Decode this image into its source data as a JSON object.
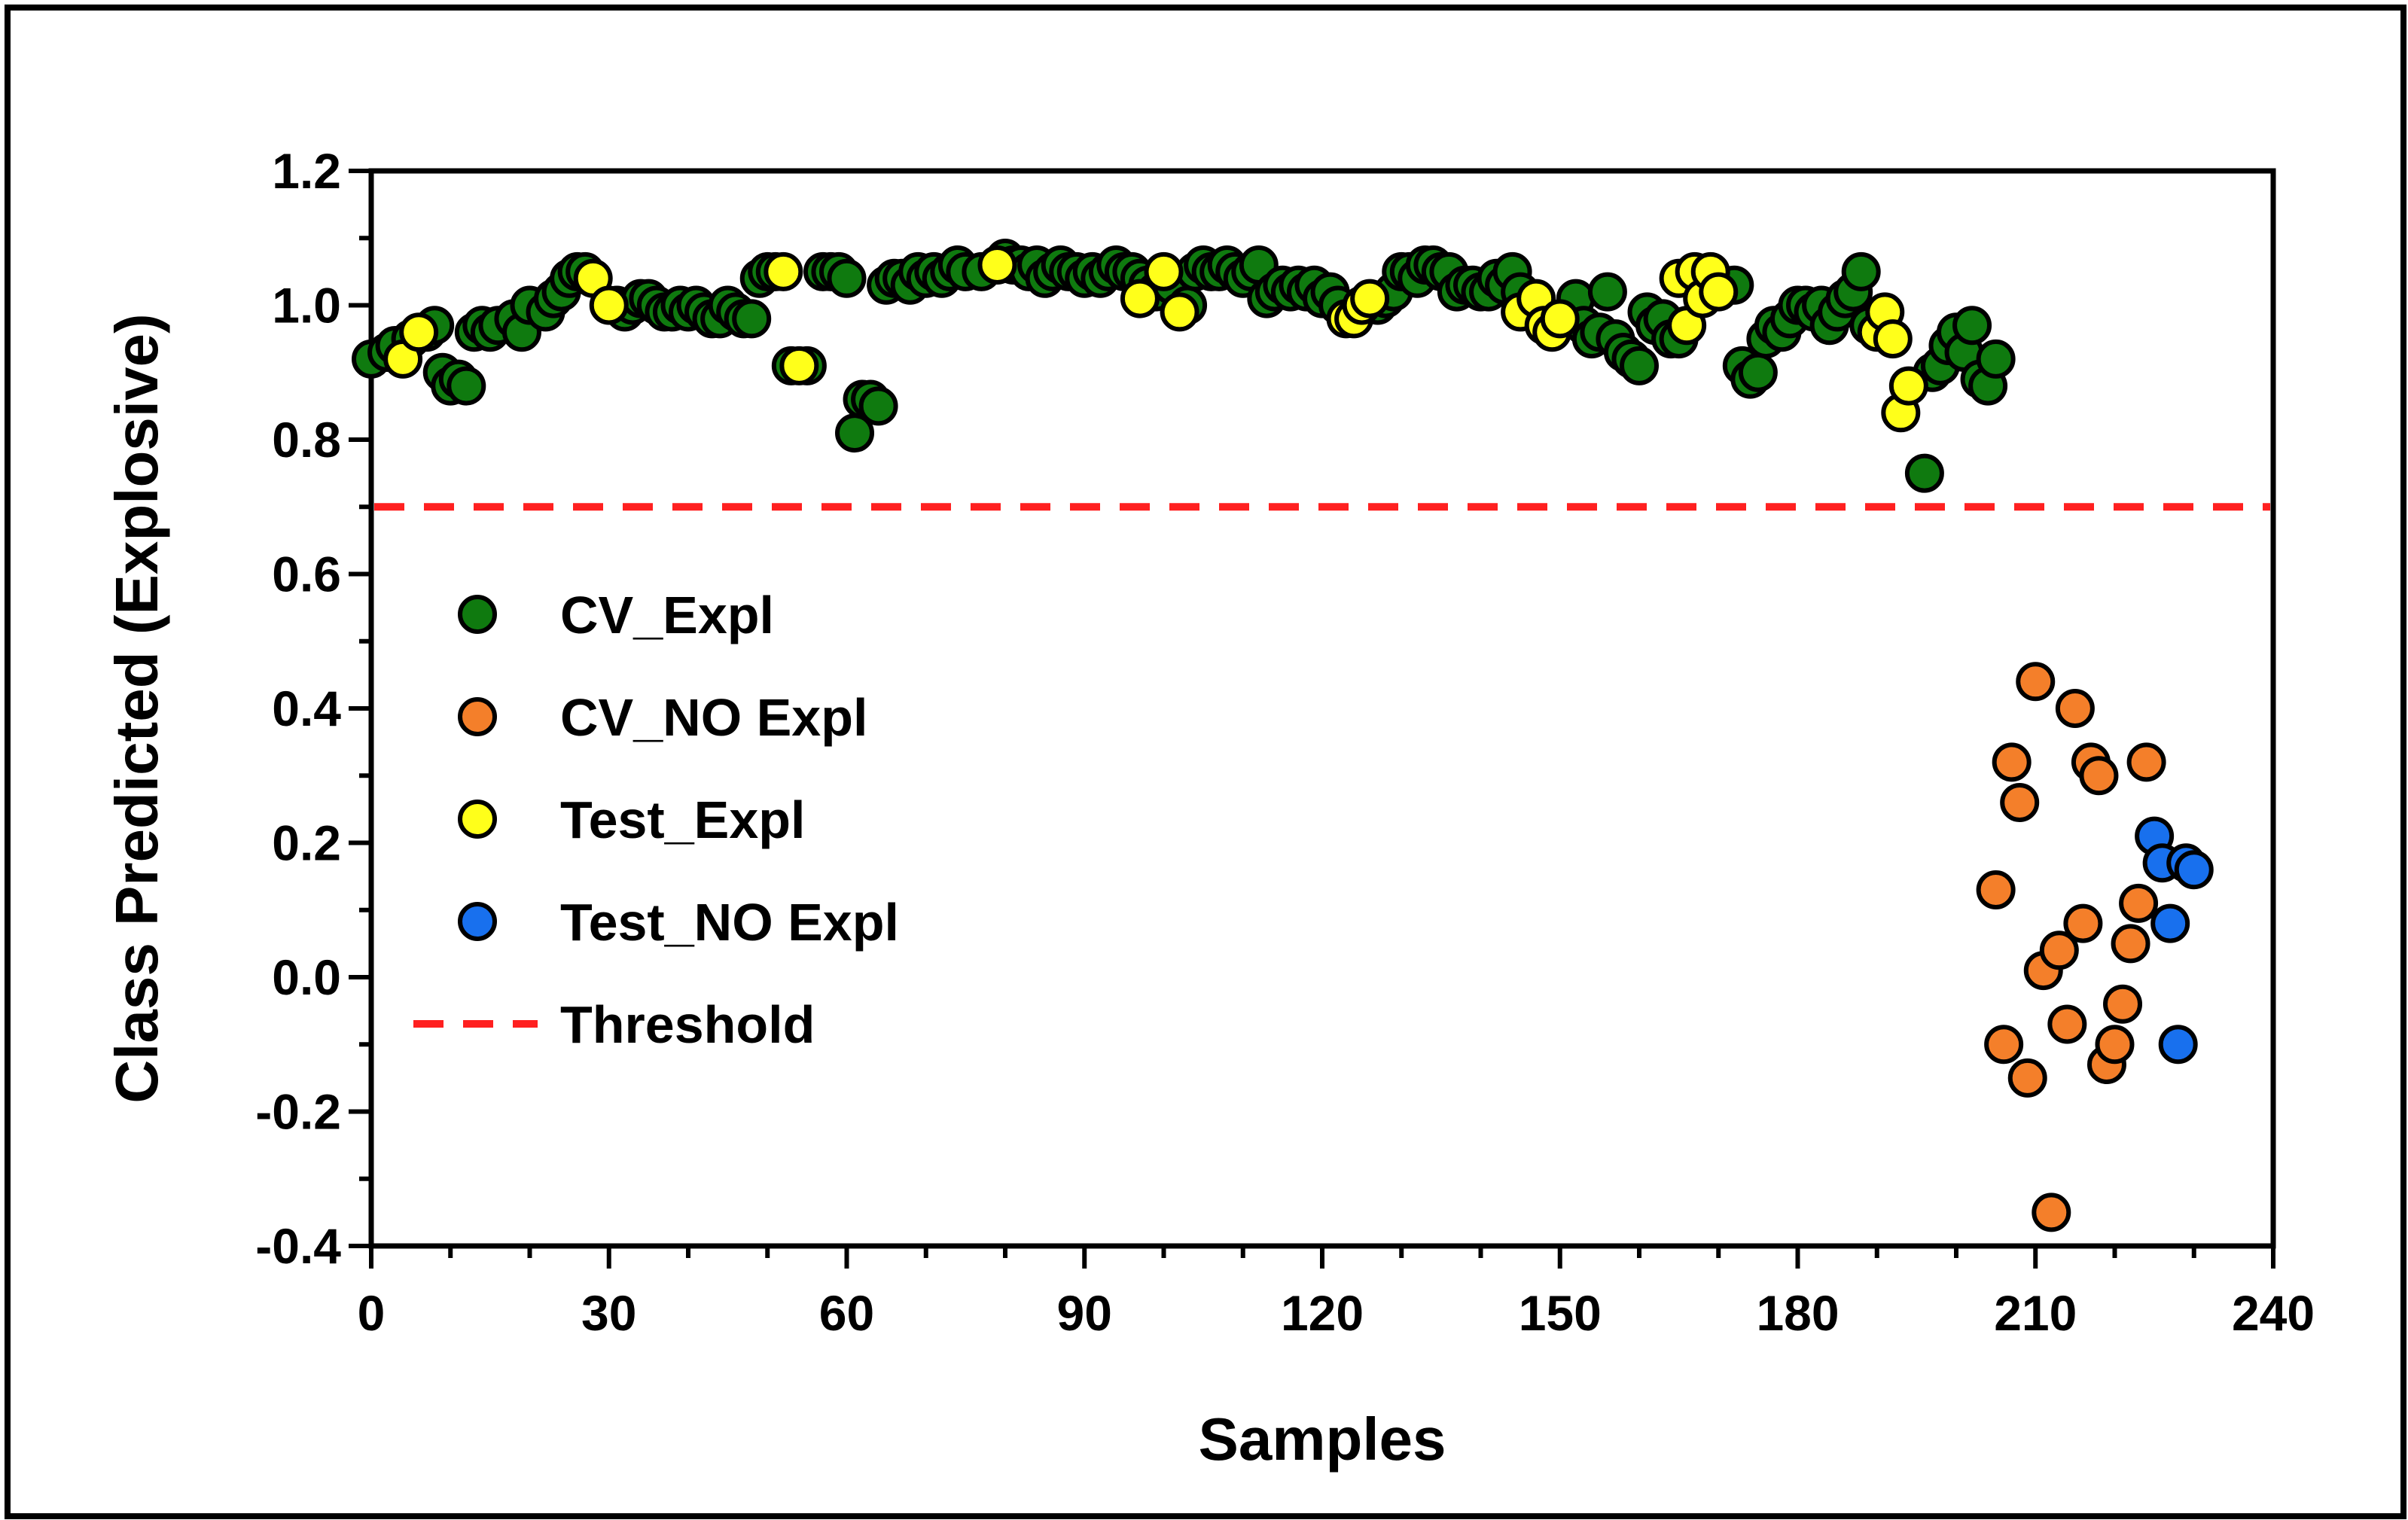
{
  "chart_data": {
    "type": "scatter",
    "title": "",
    "xlabel": "Samples",
    "ylabel": "Class Predicted (Explosive)",
    "xlim": [
      0,
      240
    ],
    "ylim": [
      -0.4,
      1.2
    ],
    "xticks": [
      0,
      30,
      60,
      90,
      120,
      150,
      180,
      210,
      240
    ],
    "yticks": [
      1.2,
      1.0,
      0.8,
      0.6,
      0.4,
      0.2,
      0.0,
      -0.2,
      -0.4
    ],
    "ytick_labels": [
      "1.2",
      "1.0",
      "0.8",
      "0.6",
      "0.4",
      "0.2",
      "0.0",
      "-0.2",
      "-0.4"
    ],
    "xtick_labels": [
      "0",
      "30",
      "60",
      "90",
      "120",
      "150",
      "180",
      "210",
      "240"
    ],
    "legend_position": "middle-left",
    "threshold": {
      "name": "Threshold",
      "value": 0.7,
      "color": "#ff2020",
      "style": "dashed"
    },
    "series": [
      {
        "name": "CV_Expl",
        "color": "#0f7a0f",
        "points": [
          [
            0,
            0.92
          ],
          [
            2,
            0.93
          ],
          [
            3,
            0.94
          ],
          [
            5,
            0.95
          ],
          [
            7,
            0.96
          ],
          [
            8,
            0.97
          ],
          [
            9,
            0.9
          ],
          [
            10,
            0.88
          ],
          [
            11,
            0.89
          ],
          [
            12,
            0.88
          ],
          [
            13,
            0.96
          ],
          [
            14,
            0.97
          ],
          [
            15,
            0.96
          ],
          [
            16,
            0.97
          ],
          [
            18,
            0.98
          ],
          [
            19,
            0.96
          ],
          [
            20,
            1.0
          ],
          [
            22,
            0.99
          ],
          [
            23,
            1.01
          ],
          [
            24,
            1.02
          ],
          [
            25,
            1.04
          ],
          [
            26,
            1.05
          ],
          [
            27,
            1.05
          ],
          [
            31,
            1.0
          ],
          [
            32,
            0.99
          ],
          [
            33,
            1.0
          ],
          [
            34,
            1.01
          ],
          [
            35,
            1.01
          ],
          [
            36,
            1.0
          ],
          [
            37,
            0.99
          ],
          [
            38,
            0.99
          ],
          [
            39,
            1.0
          ],
          [
            40,
            0.99
          ],
          [
            41,
            1.0
          ],
          [
            42,
            0.99
          ],
          [
            43,
            0.98
          ],
          [
            44,
            0.98
          ],
          [
            45,
            1.0
          ],
          [
            46,
            0.99
          ],
          [
            47,
            0.98
          ],
          [
            48,
            0.98
          ],
          [
            49,
            1.04
          ],
          [
            50,
            1.05
          ],
          [
            51,
            1.05
          ],
          [
            53,
            0.91
          ],
          [
            55,
            0.91
          ],
          [
            57,
            1.05
          ],
          [
            58,
            1.05
          ],
          [
            59,
            1.05
          ],
          [
            60,
            1.04
          ],
          [
            61,
            0.81
          ],
          [
            62,
            0.86
          ],
          [
            63,
            0.86
          ],
          [
            64,
            0.85
          ],
          [
            65,
            1.03
          ],
          [
            66,
            1.04
          ],
          [
            67,
            1.04
          ],
          [
            68,
            1.03
          ],
          [
            69,
            1.05
          ],
          [
            70,
            1.04
          ],
          [
            71,
            1.05
          ],
          [
            72,
            1.04
          ],
          [
            73,
            1.05
          ],
          [
            74,
            1.06
          ],
          [
            75,
            1.05
          ],
          [
            77,
            1.05
          ],
          [
            80,
            1.07
          ],
          [
            81,
            1.06
          ],
          [
            82,
            1.06
          ],
          [
            83,
            1.05
          ],
          [
            84,
            1.06
          ],
          [
            85,
            1.04
          ],
          [
            86,
            1.05
          ],
          [
            87,
            1.06
          ],
          [
            88,
            1.05
          ],
          [
            89,
            1.05
          ],
          [
            90,
            1.04
          ],
          [
            91,
            1.05
          ],
          [
            92,
            1.04
          ],
          [
            93,
            1.05
          ],
          [
            94,
            1.06
          ],
          [
            95,
            1.05
          ],
          [
            96,
            1.05
          ],
          [
            97,
            1.04
          ],
          [
            98,
            1.03
          ],
          [
            99,
            1.02
          ],
          [
            101,
            1.03
          ],
          [
            103,
            1.0
          ],
          [
            104,
            1.05
          ],
          [
            105,
            1.06
          ],
          [
            106,
            1.05
          ],
          [
            107,
            1.05
          ],
          [
            108,
            1.06
          ],
          [
            109,
            1.05
          ],
          [
            110,
            1.04
          ],
          [
            111,
            1.05
          ],
          [
            112,
            1.06
          ],
          [
            113,
            1.01
          ],
          [
            114,
            1.02
          ],
          [
            115,
            1.03
          ],
          [
            116,
            1.02
          ],
          [
            117,
            1.03
          ],
          [
            118,
            1.02
          ],
          [
            119,
            1.03
          ],
          [
            120,
            1.01
          ],
          [
            121,
            1.02
          ],
          [
            122,
            1.0
          ],
          [
            127,
            1.0
          ],
          [
            128,
            1.01
          ],
          [
            129,
            1.02
          ],
          [
            130,
            1.05
          ],
          [
            131,
            1.05
          ],
          [
            132,
            1.04
          ],
          [
            133,
            1.06
          ],
          [
            134,
            1.06
          ],
          [
            135,
            1.05
          ],
          [
            136,
            1.05
          ],
          [
            137,
            1.02
          ],
          [
            138,
            1.03
          ],
          [
            139,
            1.03
          ],
          [
            140,
            1.02
          ],
          [
            141,
            1.02
          ],
          [
            142,
            1.04
          ],
          [
            143,
            1.03
          ],
          [
            144,
            1.05
          ],
          [
            145,
            1.02
          ],
          [
            152,
            1.01
          ],
          [
            153,
            0.97
          ],
          [
            154,
            0.95
          ],
          [
            155,
            0.96
          ],
          [
            156,
            1.02
          ],
          [
            157,
            0.95
          ],
          [
            158,
            0.93
          ],
          [
            159,
            0.92
          ],
          [
            160,
            0.91
          ],
          [
            161,
            0.99
          ],
          [
            162,
            0.97
          ],
          [
            163,
            0.98
          ],
          [
            164,
            0.95
          ],
          [
            165,
            0.95
          ],
          [
            172,
            1.03
          ],
          [
            173,
            0.91
          ],
          [
            174,
            0.89
          ],
          [
            175,
            0.9
          ],
          [
            176,
            0.95
          ],
          [
            177,
            0.97
          ],
          [
            178,
            0.96
          ],
          [
            179,
            0.98
          ],
          [
            180,
            1.0
          ],
          [
            181,
            1.0
          ],
          [
            182,
            0.99
          ],
          [
            183,
            1.0
          ],
          [
            184,
            0.97
          ],
          [
            185,
            0.99
          ],
          [
            186,
            1.01
          ],
          [
            187,
            1.02
          ],
          [
            188,
            1.05
          ],
          [
            189,
            0.97
          ],
          [
            196,
            0.75
          ],
          [
            197,
            0.9
          ],
          [
            198,
            0.91
          ],
          [
            199,
            0.94
          ],
          [
            200,
            0.96
          ],
          [
            201,
            0.93
          ],
          [
            202,
            0.97
          ],
          [
            203,
            0.89
          ],
          [
            204,
            0.88
          ],
          [
            205,
            0.92
          ]
        ]
      },
      {
        "name": "CV_NO Expl",
        "color": "#f47f2a",
        "points": [
          [
            205,
            0.13
          ],
          [
            206,
            -0.1
          ],
          [
            207,
            0.32
          ],
          [
            208,
            0.26
          ],
          [
            209,
            -0.15
          ],
          [
            210,
            0.44
          ],
          [
            211,
            0.01
          ],
          [
            212,
            -0.35
          ],
          [
            213,
            0.04
          ],
          [
            214,
            -0.07
          ],
          [
            215,
            0.4
          ],
          [
            216,
            0.08
          ],
          [
            217,
            0.32
          ],
          [
            218,
            0.3
          ],
          [
            219,
            -0.13
          ],
          [
            220,
            -0.1
          ],
          [
            221,
            -0.04
          ],
          [
            222,
            0.05
          ],
          [
            223,
            0.11
          ],
          [
            224,
            0.32
          ]
        ]
      },
      {
        "name": "Test_Expl",
        "color": "#ffff1a",
        "points": [
          [
            4,
            0.92
          ],
          [
            6,
            0.96
          ],
          [
            28,
            1.04
          ],
          [
            30,
            1.0
          ],
          [
            52,
            1.05
          ],
          [
            54,
            0.91
          ],
          [
            79,
            1.06
          ],
          [
            97,
            1.01
          ],
          [
            100,
            1.05
          ],
          [
            102,
            0.99
          ],
          [
            123,
            0.98
          ],
          [
            124,
            0.98
          ],
          [
            125,
            1.0
          ],
          [
            126,
            1.01
          ],
          [
            145,
            0.99
          ],
          [
            147,
            1.01
          ],
          [
            148,
            0.97
          ],
          [
            149,
            0.96
          ],
          [
            150,
            0.98
          ],
          [
            165,
            1.04
          ],
          [
            166,
            0.97
          ],
          [
            167,
            1.05
          ],
          [
            168,
            1.01
          ],
          [
            169,
            1.05
          ],
          [
            170,
            1.02
          ],
          [
            190,
            0.96
          ],
          [
            191,
            0.99
          ],
          [
            192,
            0.95
          ],
          [
            193,
            0.84
          ],
          [
            194,
            0.88
          ]
        ]
      },
      {
        "name": "Test_NO Expl",
        "color": "#1870ee",
        "points": [
          [
            225,
            0.21
          ],
          [
            226,
            0.17
          ],
          [
            227,
            0.08
          ],
          [
            228,
            -0.1
          ],
          [
            229,
            0.17
          ],
          [
            230,
            0.16
          ]
        ]
      }
    ]
  }
}
